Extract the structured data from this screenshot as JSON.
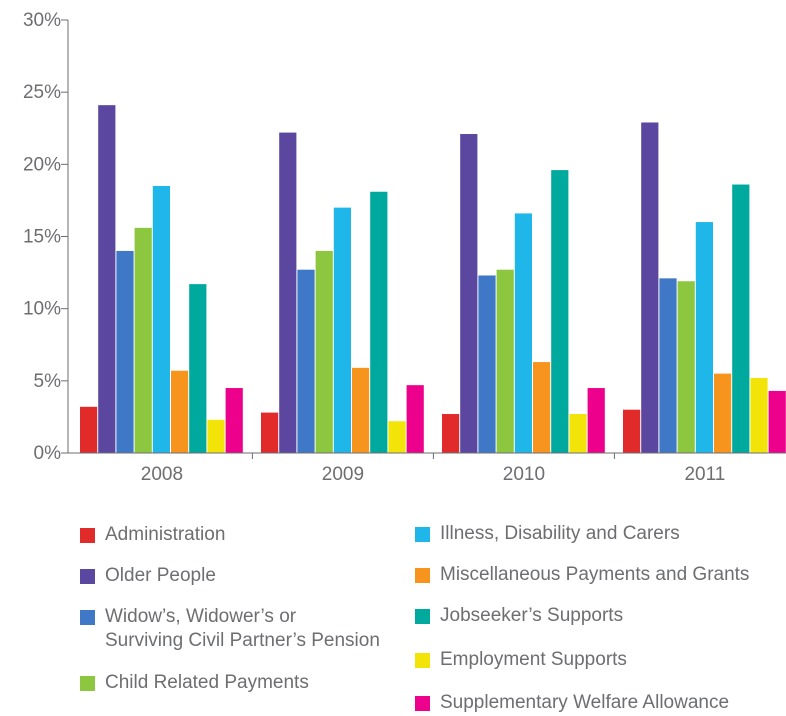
{
  "chart_data": {
    "type": "bar",
    "categories": [
      "2008",
      "2009",
      "2010",
      "2011"
    ],
    "y_ticks": [
      "0%",
      "5%",
      "10%",
      "15%",
      "20%",
      "25%",
      "30%"
    ],
    "ylim": [
      0,
      30
    ],
    "y_unit": "%",
    "grid": false,
    "legend_position": "bottom",
    "series": [
      {
        "name": "Administration",
        "color": "#e12a2a",
        "values": [
          3.2,
          2.8,
          2.7,
          3.0
        ]
      },
      {
        "name": "Older People",
        "color": "#5b47a0",
        "values": [
          24.1,
          22.2,
          22.1,
          22.9
        ]
      },
      {
        "name": "Widow’s, Widower’s or\nSurviving Civil Partner’s Pension",
        "color": "#3f78c6",
        "values": [
          14.0,
          12.7,
          12.3,
          12.1
        ]
      },
      {
        "name": "Child Related Payments",
        "color": "#8dc63f",
        "values": [
          15.6,
          14.0,
          12.7,
          11.9
        ]
      },
      {
        "name": "Illness, Disability and Carers",
        "color": "#1fb6e9",
        "values": [
          18.5,
          17.0,
          16.6,
          16.0
        ]
      },
      {
        "name": "Miscellaneous Payments and Grants",
        "color": "#f7941d",
        "values": [
          5.7,
          5.9,
          6.3,
          5.5
        ]
      },
      {
        "name": "Jobseeker’s Supports",
        "color": "#00a99d",
        "values": [
          11.7,
          18.1,
          19.6,
          18.6
        ]
      },
      {
        "name": "Employment Supports",
        "color": "#f2e409",
        "values": [
          2.3,
          2.2,
          2.7,
          5.2
        ]
      },
      {
        "name": "Supplementary Welfare Allowance",
        "color": "#ec008c",
        "values": [
          4.5,
          4.7,
          4.5,
          4.3
        ]
      }
    ]
  }
}
